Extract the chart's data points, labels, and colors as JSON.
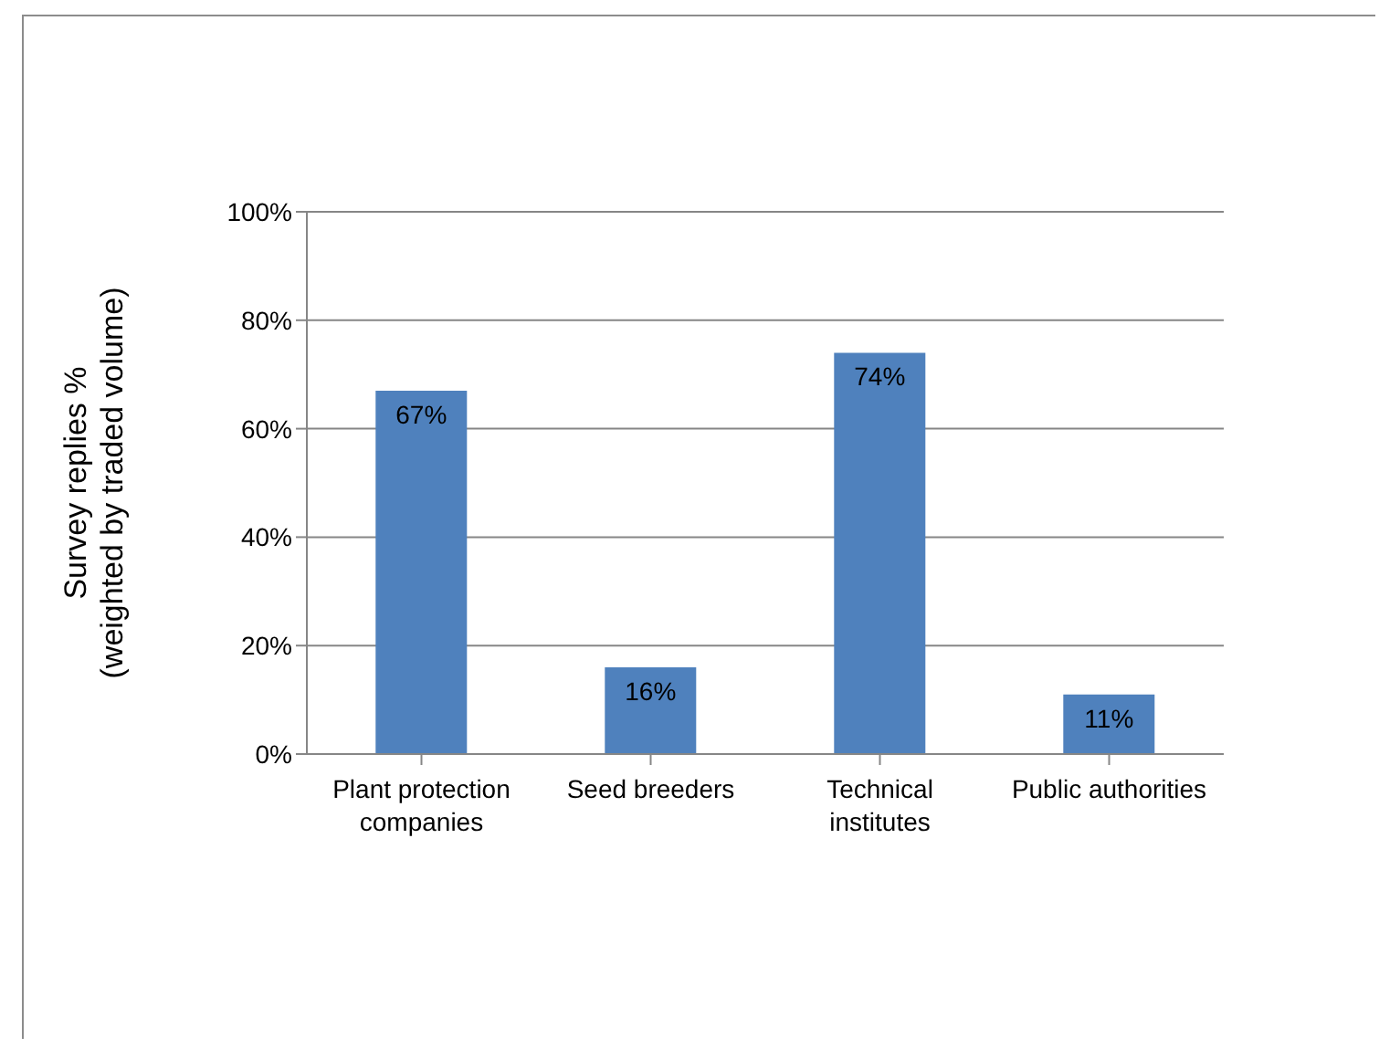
{
  "chart_data": {
    "type": "bar",
    "ylabel": "Survey replies %\n(weighted by traded volume)",
    "categories": [
      "Plant protection companies",
      "Seed breeders",
      "Technical institutes",
      "Public authorities"
    ],
    "values": [
      67,
      16,
      74,
      11
    ],
    "color": "#4f81bd",
    "value_labels": [
      "67%",
      "16%",
      "74%",
      "11%"
    ],
    "ylim": [
      0,
      100
    ],
    "yticks": [
      {
        "value": 0,
        "label": "0%"
      },
      {
        "value": 20,
        "label": "20%"
      },
      {
        "value": 40,
        "label": "40%"
      },
      {
        "value": 60,
        "label": "60%"
      },
      {
        "value": 80,
        "label": "80%"
      },
      {
        "value": 100,
        "label": "100%"
      }
    ],
    "grid": "y",
    "legend": false
  }
}
